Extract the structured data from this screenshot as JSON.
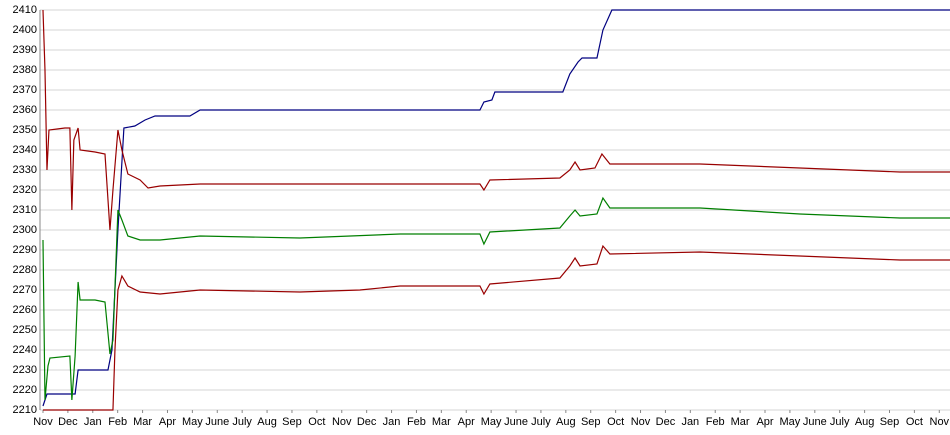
{
  "chart_data": {
    "type": "line",
    "xlim": [
      -0.12,
      36.43
    ],
    "ylim": [
      2210,
      2410
    ],
    "yticks": [
      2210,
      2220,
      2230,
      2240,
      2250,
      2260,
      2270,
      2280,
      2290,
      2300,
      2310,
      2320,
      2330,
      2340,
      2350,
      2360,
      2370,
      2380,
      2390,
      2400,
      2410
    ],
    "xticks": [
      {
        "value": 0,
        "label": "Nov"
      },
      {
        "value": 1,
        "label": "Dec"
      },
      {
        "value": 2,
        "label": "Jan"
      },
      {
        "value": 3,
        "label": "Feb"
      },
      {
        "value": 4,
        "label": "Mar"
      },
      {
        "value": 5,
        "label": "Apr"
      },
      {
        "value": 6,
        "label": "May"
      },
      {
        "value": 7,
        "label": "June"
      },
      {
        "value": 8,
        "label": "July"
      },
      {
        "value": 9,
        "label": "Aug"
      },
      {
        "value": 10,
        "label": "Sep"
      },
      {
        "value": 11,
        "label": "Oct"
      },
      {
        "value": 12,
        "label": "Nov"
      },
      {
        "value": 13,
        "label": "Dec"
      },
      {
        "value": 14,
        "label": "Jan"
      },
      {
        "value": 15,
        "label": "Feb"
      },
      {
        "value": 16,
        "label": "Mar"
      },
      {
        "value": 17,
        "label": "Apr"
      },
      {
        "value": 18,
        "label": "May"
      },
      {
        "value": 19,
        "label": "June"
      },
      {
        "value": 20,
        "label": "July"
      },
      {
        "value": 21,
        "label": "Aug"
      },
      {
        "value": 22,
        "label": "Sep"
      },
      {
        "value": 23,
        "label": "Oct"
      },
      {
        "value": 24,
        "label": "Nov"
      },
      {
        "value": 25,
        "label": "Dec"
      },
      {
        "value": 26,
        "label": "Jan"
      },
      {
        "value": 27,
        "label": "Feb"
      },
      {
        "value": 28,
        "label": "Mar"
      },
      {
        "value": 29,
        "label": "Apr"
      },
      {
        "value": 30,
        "label": "May"
      },
      {
        "value": 31,
        "label": "June"
      },
      {
        "value": 32,
        "label": "July"
      },
      {
        "value": 33,
        "label": "Aug"
      },
      {
        "value": 34,
        "label": "Sep"
      },
      {
        "value": 35,
        "label": "Oct"
      },
      {
        "value": 36,
        "label": "Nov"
      }
    ],
    "grid": true,
    "series": [
      {
        "color": "#000080",
        "x": [
          0,
          0.16,
          1.29,
          1.41,
          2.61,
          2.77,
          3.01,
          3.25,
          3.69,
          4.1,
          4.5,
          5.9,
          6.31,
          17.55,
          17.71,
          18.03,
          18.15,
          20.88,
          21.16,
          21.49,
          21.65,
          22.25,
          22.49,
          22.85,
          36.43
        ],
        "values": [
          2212,
          2218,
          2218,
          2230,
          2230,
          2240,
          2300,
          2351,
          2352,
          2355,
          2357,
          2357,
          2360,
          2360,
          2364,
          2365,
          2369,
          2369,
          2378,
          2384,
          2386,
          2386,
          2400,
          2410,
          2410
        ]
      },
      {
        "color": "#990000",
        "x": [
          0,
          0.08,
          0.16,
          0.24,
          0.88,
          1.08,
          1.16,
          1.24,
          1.41,
          1.49,
          2.09,
          2.49,
          2.69,
          2.81,
          3.01,
          3.17,
          3.41,
          3.9,
          4.22,
          4.7,
          6.31,
          10.32,
          14.34,
          17.55,
          17.71,
          17.95,
          20.76,
          21.16,
          21.37,
          21.57,
          22.17,
          22.45,
          22.77,
          26.39,
          30.4,
          34.42,
          36.43
        ],
        "values": [
          2410,
          2380,
          2330,
          2350,
          2351,
          2351,
          2310,
          2345,
          2351,
          2340,
          2339,
          2338,
          2300,
          2320,
          2350,
          2340,
          2328,
          2325,
          2321,
          2322,
          2323,
          2323,
          2323,
          2323,
          2320,
          2325,
          2326,
          2330,
          2334,
          2330,
          2331,
          2338,
          2333,
          2333,
          2331,
          2329,
          2329
        ]
      },
      {
        "color": "#007f00",
        "x": [
          0,
          0.08,
          0.2,
          0.28,
          1.08,
          1.16,
          1.29,
          1.41,
          1.49,
          2.09,
          2.49,
          2.69,
          2.81,
          3.01,
          3.17,
          3.41,
          3.9,
          4.7,
          6.31,
          10.32,
          14.34,
          17.55,
          17.71,
          17.95,
          20.76,
          21.16,
          21.37,
          21.57,
          22.25,
          22.49,
          22.77,
          26.39,
          30.4,
          34.42,
          36.43
        ],
        "values": [
          2295,
          2215,
          2232,
          2236,
          2237,
          2215,
          2237,
          2274,
          2265,
          2265,
          2264,
          2238,
          2245,
          2310,
          2305,
          2297,
          2295,
          2295,
          2297,
          2296,
          2298,
          2298,
          2293,
          2299,
          2301,
          2307,
          2310,
          2307,
          2308,
          2316,
          2311,
          2311,
          2308,
          2306,
          2306
        ]
      },
      {
        "color": "#990000",
        "x": [
          0,
          2.81,
          2.89,
          3.01,
          3.17,
          3.41,
          3.9,
          4.7,
          6.31,
          10.32,
          12.73,
          14.34,
          17.55,
          17.71,
          17.95,
          20.76,
          21.16,
          21.37,
          21.57,
          22.25,
          22.49,
          22.77,
          26.39,
          30.4,
          34.42,
          36.43
        ],
        "values": [
          2210,
          2210,
          2240,
          2270,
          2277,
          2272,
          2269,
          2268,
          2270,
          2269,
          2270,
          2272,
          2272,
          2268,
          2273,
          2276,
          2282,
          2286,
          2282,
          2283,
          2292,
          2288,
          2289,
          2287,
          2285,
          2285
        ]
      }
    ]
  }
}
